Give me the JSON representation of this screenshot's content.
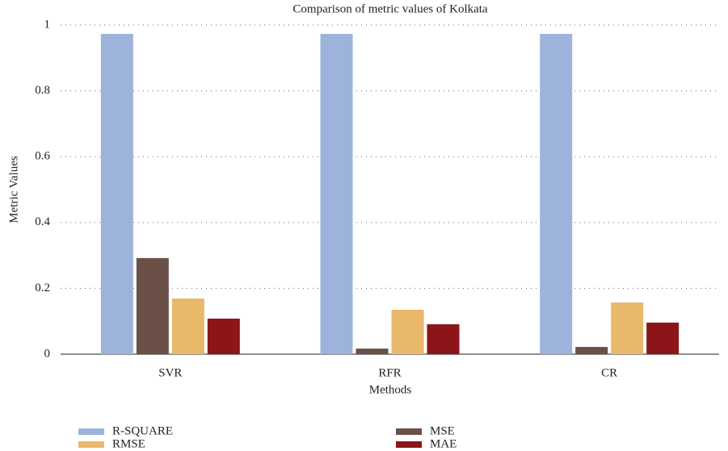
{
  "chart_data": {
    "type": "bar",
    "title": "Comparison of metric values of Kolkata",
    "x_label": "Methods",
    "y_label": "Metric Values",
    "categories": [
      "SVR",
      "RFR",
      "CR"
    ],
    "series": [
      {
        "name": "R-SQUARE",
        "color": "#9db3dc",
        "values": [
          0.973,
          0.973,
          0.973
        ]
      },
      {
        "name": "MSE",
        "color": "#6b5048",
        "values": [
          0.292,
          0.017,
          0.022
        ]
      },
      {
        "name": "RMSE",
        "color": "#e8b96a",
        "values": [
          0.169,
          0.135,
          0.157
        ]
      },
      {
        "name": "MAE",
        "color": "#8b1518",
        "values": [
          0.108,
          0.091,
          0.096
        ]
      }
    ],
    "ylim": [
      0,
      1
    ],
    "yticks": [
      0,
      0.2,
      0.4,
      0.6,
      0.8,
      1
    ],
    "grid": true
  }
}
